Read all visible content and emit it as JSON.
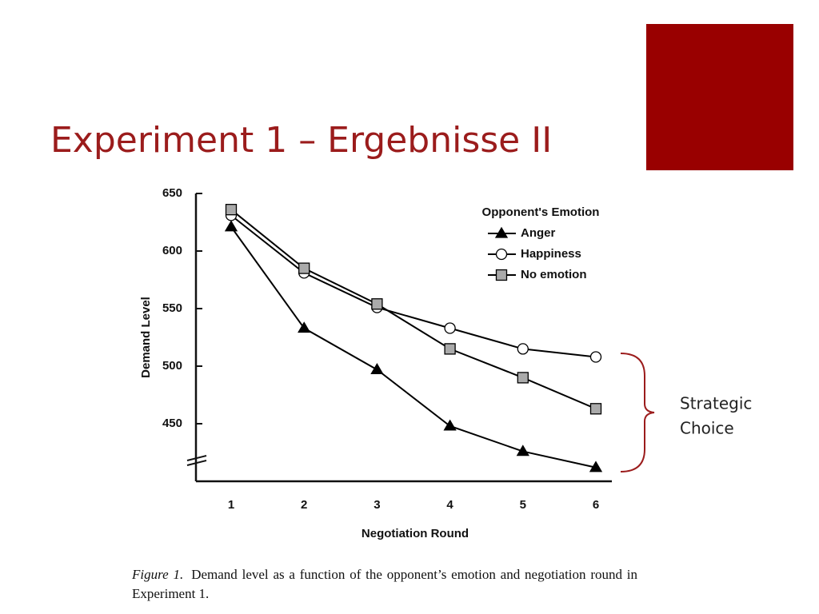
{
  "slide": {
    "title": "Experiment 1 – Ergebnisse II",
    "annotation": [
      "Strategic",
      "Choice"
    ],
    "caption_label": "Figure 1.",
    "caption_text": "Demand level as a function of the opponent’s emotion and negotiation round in Experiment 1."
  },
  "chart_data": {
    "type": "line",
    "x_label": "Negotiation Round",
    "y_label": "Demand Level",
    "legend_title": "Opponent's Emotion",
    "legend_position": "upper right",
    "categories": [
      "1",
      "2",
      "3",
      "4",
      "5",
      "6"
    ],
    "series": [
      {
        "name": "Anger",
        "color": "#000000",
        "marker": "triangle",
        "marker_fill": "#000000",
        "values": [
          621,
          533,
          497,
          448,
          426,
          412
        ]
      },
      {
        "name": "Happiness",
        "color": "#000000",
        "marker": "circle",
        "marker_fill": "#ffffff",
        "values": [
          631,
          581,
          551,
          533,
          515,
          508
        ]
      },
      {
        "name": "No emotion",
        "color": "#000000",
        "marker": "square",
        "marker_fill": "#aaaaaa",
        "values": [
          636,
          585,
          554,
          515,
          490,
          463
        ]
      }
    ],
    "ylim": [
      400,
      650
    ],
    "yticks": [
      450,
      500,
      550,
      600,
      650
    ],
    "grid": false
  }
}
